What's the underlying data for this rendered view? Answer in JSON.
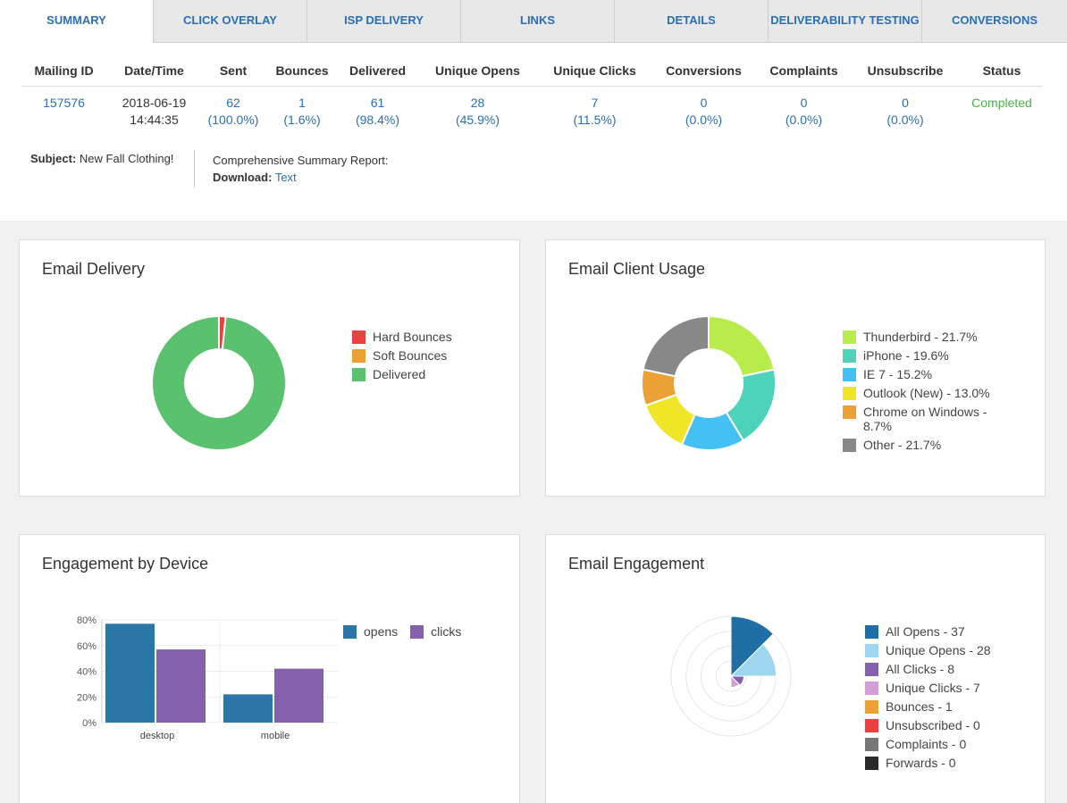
{
  "tabs": [
    {
      "label": "SUMMARY"
    },
    {
      "label": "CLICK OVERLAY"
    },
    {
      "label": "ISP DELIVERY"
    },
    {
      "label": "LINKS"
    },
    {
      "label": "DETAILS"
    },
    {
      "label": "DELIVERABILITY TESTING"
    },
    {
      "label": "CONVERSIONS"
    }
  ],
  "summary": {
    "headers": {
      "mailing_id": "Mailing ID",
      "datetime": "Date/Time",
      "sent": "Sent",
      "bounces": "Bounces",
      "delivered": "Delivered",
      "unique_opens": "Unique Opens",
      "unique_clicks": "Unique Clicks",
      "conversions": "Conversions",
      "complaints": "Complaints",
      "unsubscribe": "Unsubscribe",
      "status": "Status"
    },
    "row": {
      "mailing_id": "157576",
      "date": "2018-06-19",
      "time": "14:44:35",
      "sent": "62",
      "sent_pct": "(100.0%)",
      "bounces": "1",
      "bounces_pct": "(1.6%)",
      "delivered": "61",
      "delivered_pct": "(98.4%)",
      "unique_opens": "28",
      "unique_opens_pct": "(45.9%)",
      "unique_clicks": "7",
      "unique_clicks_pct": "(11.5%)",
      "conversions": "0",
      "conversions_pct": "(0.0%)",
      "complaints": "0",
      "complaints_pct": "(0.0%)",
      "unsubscribe": "0",
      "unsubscribe_pct": "(0.0%)",
      "status": "Completed"
    },
    "subject_label": "Subject:",
    "subject_value": "New Fall Clothing!",
    "report_label": "Comprehensive Summary Report:",
    "download_label": "Download:",
    "download_link": "Text"
  },
  "colors": {
    "link_blue": "#2a6fb6",
    "status_green": "#4cae4c"
  },
  "panels": {
    "delivery_title": "Email Delivery",
    "client_title": "Email Client Usage",
    "device_title": "Engagement by Device",
    "engagement_title": "Email Engagement"
  },
  "chart_data": [
    {
      "type": "pie",
      "title": "Email Delivery",
      "labels": [
        "Hard Bounces",
        "Soft Bounces",
        "Delivered"
      ],
      "values": [
        1,
        0,
        61
      ],
      "colors": [
        "#e8413f",
        "#eaa236",
        "#5ac16f"
      ]
    },
    {
      "type": "pie",
      "title": "Email Client Usage",
      "labels": [
        "Thunderbird - 21.7%",
        "iPhone - 19.6%",
        "IE 7 - 15.2%",
        "Outlook (New) - 13.0%",
        "Chrome on Windows - 8.7%",
        "Other - 21.7%"
      ],
      "values": [
        21.7,
        19.6,
        15.2,
        13.0,
        8.7,
        21.7
      ],
      "colors": [
        "#b8ec4b",
        "#4cd3b9",
        "#44c0f4",
        "#f0e527",
        "#eaa236",
        "#888888"
      ]
    },
    {
      "type": "bar",
      "title": "Engagement by Device",
      "categories": [
        "desktop",
        "mobile"
      ],
      "series": [
        {
          "name": "opens",
          "values": [
            77,
            22
          ],
          "color": "#2b76a7"
        },
        {
          "name": "clicks",
          "values": [
            57,
            42
          ],
          "color": "#8560ad"
        }
      ],
      "y_ticks": [
        "0%",
        "20%",
        "40%",
        "60%",
        "80%"
      ],
      "ylim": [
        0,
        80
      ]
    },
    {
      "type": "polar-area",
      "title": "Email Engagement",
      "labels": [
        "All Opens - 37",
        "Unique Opens - 28",
        "All Clicks - 8",
        "Unique Clicks - 7",
        "Bounces - 1",
        "Unsubscribed - 0",
        "Complaints - 0",
        "Forwards - 0"
      ],
      "values": [
        37,
        28,
        8,
        7,
        1,
        0,
        0,
        0
      ],
      "colors": [
        "#1f6fa6",
        "#9fd6ef",
        "#8560ad",
        "#cf9fd6",
        "#eaa236",
        "#e8413f",
        "#777777",
        "#2a2a2a"
      ]
    }
  ]
}
